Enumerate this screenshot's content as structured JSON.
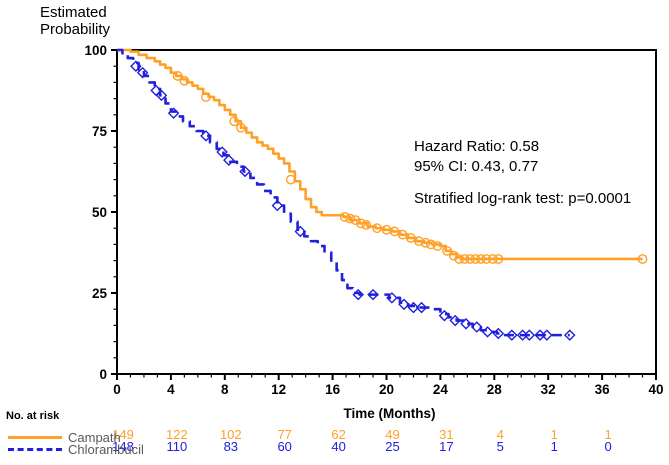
{
  "title": {
    "line1": "Estimated",
    "line2": "Probability"
  },
  "annotations": {
    "hazard_ratio": "Hazard Ratio: 0.58",
    "ci": "95% CI: 0.43, 0.77",
    "logrank": "Stratified log-rank test: p=0.0001"
  },
  "colors": {
    "campath": "#FFA028",
    "chlorambucil": "#2020DD",
    "legend_text": "#595959",
    "axis": "#000000"
  },
  "risk_table": {
    "header": "No. at risk",
    "time_points": [
      0,
      4,
      8,
      12,
      16,
      20,
      24,
      28,
      32,
      36
    ],
    "rows": [
      {
        "name": "Campath",
        "color": "#FFA028",
        "counts": [
          "149",
          "122",
          "102",
          "77",
          "62",
          "49",
          "31",
          "4",
          "1",
          "1"
        ]
      },
      {
        "name": "Chlorambucil",
        "color": "#2020DD",
        "counts": [
          "148",
          "110",
          "83",
          "60",
          "40",
          "25",
          "17",
          "5",
          "1",
          "0"
        ]
      }
    ]
  },
  "chart_data": {
    "type": "line",
    "subtype": "kaplan-meier-step",
    "title": "",
    "xlabel": "Time (Months)",
    "ylabel": "Estimated Probability",
    "xlim": [
      0,
      40
    ],
    "ylim": [
      0,
      100
    ],
    "x_major_step": 4,
    "x_minor_step": 1,
    "y_major_step": 25,
    "y_minor_step": 5,
    "x_ticks": [
      "0",
      "4",
      "8",
      "12",
      "16",
      "20",
      "24",
      "28",
      "32",
      "36",
      "40"
    ],
    "y_ticks": [
      "0",
      "25",
      "50",
      "75",
      "100"
    ],
    "grid": false,
    "legend_position": "bottom-left",
    "series": [
      {
        "name": "Campath",
        "color": "#FFA028",
        "line_style": "solid",
        "marker": "circle",
        "steps": [
          [
            0,
            100
          ],
          [
            1,
            99.5
          ],
          [
            1.6,
            98.5
          ],
          [
            2.2,
            97.5
          ],
          [
            2.8,
            96.5
          ],
          [
            3.2,
            95.5
          ],
          [
            3.6,
            94.5
          ],
          [
            4,
            93
          ],
          [
            4.4,
            92
          ],
          [
            4.8,
            91
          ],
          [
            5.2,
            90
          ],
          [
            5.6,
            89
          ],
          [
            6,
            88
          ],
          [
            6.4,
            86.5
          ],
          [
            6.8,
            85.5
          ],
          [
            7.2,
            84.5
          ],
          [
            7.6,
            83
          ],
          [
            8,
            81.5
          ],
          [
            8.4,
            80
          ],
          [
            8.8,
            78
          ],
          [
            9.2,
            76
          ],
          [
            9.6,
            74.5
          ],
          [
            10,
            73
          ],
          [
            10.4,
            71.5
          ],
          [
            10.8,
            70.5
          ],
          [
            11.2,
            69.5
          ],
          [
            11.6,
            68
          ],
          [
            12,
            66.5
          ],
          [
            12.4,
            65
          ],
          [
            12.8,
            62.5
          ],
          [
            13.2,
            59.5
          ],
          [
            13.6,
            57
          ],
          [
            14,
            54
          ],
          [
            14.4,
            51.5
          ],
          [
            14.8,
            50
          ],
          [
            15.2,
            49
          ],
          [
            16.8,
            48.5
          ],
          [
            17.3,
            47.5
          ],
          [
            18,
            46.5
          ],
          [
            18.6,
            45.5
          ],
          [
            19.2,
            45
          ],
          [
            19.8,
            44.5
          ],
          [
            20.4,
            44
          ],
          [
            21,
            43
          ],
          [
            21.6,
            42
          ],
          [
            22.2,
            41
          ],
          [
            22.8,
            40.5
          ],
          [
            23.4,
            40
          ],
          [
            24,
            39.5
          ],
          [
            24.4,
            38
          ],
          [
            24.8,
            37
          ],
          [
            25.2,
            36
          ],
          [
            25.6,
            35.5
          ],
          [
            39,
            35.5
          ]
        ],
        "censor_marks": [
          [
            4.5,
            92
          ],
          [
            5,
            90.5
          ],
          [
            6.6,
            85.5
          ],
          [
            8.7,
            78
          ],
          [
            9.2,
            76
          ],
          [
            12.9,
            60
          ],
          [
            16.9,
            48.5
          ],
          [
            17.3,
            48
          ],
          [
            17.7,
            47.5
          ],
          [
            18.1,
            46.5
          ],
          [
            18.5,
            46
          ],
          [
            19.3,
            45
          ],
          [
            20,
            44.5
          ],
          [
            20.6,
            44
          ],
          [
            21.2,
            43
          ],
          [
            21.8,
            42
          ],
          [
            22.4,
            41
          ],
          [
            22.9,
            40.5
          ],
          [
            23.3,
            40
          ],
          [
            23.8,
            39.5
          ],
          [
            24.5,
            38
          ],
          [
            25,
            36.5
          ],
          [
            25.4,
            35.5
          ],
          [
            25.8,
            35.5
          ],
          [
            26.2,
            35.5
          ],
          [
            26.6,
            35.5
          ],
          [
            27,
            35.5
          ],
          [
            27.4,
            35.5
          ],
          [
            27.9,
            35.5
          ],
          [
            28.3,
            35.5
          ],
          [
            39,
            35.5
          ]
        ]
      },
      {
        "name": "Chlorambucil",
        "color": "#2020DD",
        "line_style": "dashed",
        "marker": "diamond",
        "steps": [
          [
            0,
            100
          ],
          [
            0.4,
            99
          ],
          [
            0.8,
            97.5
          ],
          [
            1.2,
            96
          ],
          [
            1.6,
            94
          ],
          [
            2,
            92
          ],
          [
            2.4,
            90
          ],
          [
            2.8,
            88
          ],
          [
            3.2,
            86
          ],
          [
            3.6,
            83.5
          ],
          [
            4,
            81
          ],
          [
            4.4,
            79.5
          ],
          [
            4.9,
            78
          ],
          [
            5.4,
            76.5
          ],
          [
            5.9,
            75
          ],
          [
            6.4,
            73.5
          ],
          [
            6.9,
            71.5
          ],
          [
            7.4,
            69.5
          ],
          [
            7.9,
            67.5
          ],
          [
            8.4,
            65.5
          ],
          [
            8.9,
            64
          ],
          [
            9.4,
            62.5
          ],
          [
            9.9,
            60.5
          ],
          [
            10.4,
            58.5
          ],
          [
            10.9,
            56.5
          ],
          [
            11.4,
            54.5
          ],
          [
            11.9,
            52
          ],
          [
            12.4,
            49.5
          ],
          [
            12.9,
            47
          ],
          [
            13.4,
            44.5
          ],
          [
            13.9,
            42.5
          ],
          [
            14.4,
            41
          ],
          [
            14.9,
            39.5
          ],
          [
            15.4,
            37.5
          ],
          [
            15.9,
            35
          ],
          [
            16.3,
            32
          ],
          [
            16.7,
            29
          ],
          [
            17.1,
            26.5
          ],
          [
            17.5,
            25
          ],
          [
            18,
            24.5
          ],
          [
            20.2,
            23.5
          ],
          [
            21,
            22
          ],
          [
            21.6,
            21
          ],
          [
            22.2,
            20.5
          ],
          [
            23.4,
            20
          ],
          [
            24,
            18.5
          ],
          [
            24.6,
            17.5
          ],
          [
            25.2,
            16.5
          ],
          [
            25.8,
            15.5
          ],
          [
            26.4,
            14.5
          ],
          [
            27,
            13.5
          ],
          [
            27.6,
            13
          ],
          [
            28.2,
            12.5
          ],
          [
            28.8,
            12
          ],
          [
            33.6,
            12
          ]
        ],
        "censor_marks": [
          [
            1.4,
            95
          ],
          [
            1.9,
            93
          ],
          [
            2.9,
            87.5
          ],
          [
            3.3,
            86
          ],
          [
            4.2,
            80.5
          ],
          [
            6.6,
            73.5
          ],
          [
            7.8,
            68.5
          ],
          [
            8.3,
            66
          ],
          [
            9.5,
            62.5
          ],
          [
            11.9,
            52
          ],
          [
            13.6,
            44
          ],
          [
            17.9,
            24.5
          ],
          [
            19,
            24.5
          ],
          [
            20.4,
            23.5
          ],
          [
            21.3,
            21.5
          ],
          [
            22,
            20.5
          ],
          [
            22.6,
            20.5
          ],
          [
            24.3,
            18
          ],
          [
            25.1,
            16.5
          ],
          [
            25.9,
            15.5
          ],
          [
            26.7,
            14.5
          ],
          [
            27.5,
            13
          ],
          [
            28.3,
            12.5
          ],
          [
            29.3,
            12
          ],
          [
            30.1,
            12
          ],
          [
            30.6,
            12
          ],
          [
            31.4,
            12
          ],
          [
            31.9,
            12
          ],
          [
            33.6,
            12
          ]
        ],
        "final_point": [
          33.6,
          12
        ]
      }
    ],
    "annotations": [
      "Hazard Ratio: 0.58",
      "95% CI: 0.43, 0.77",
      "Stratified log-rank test: p=0.0001"
    ]
  }
}
